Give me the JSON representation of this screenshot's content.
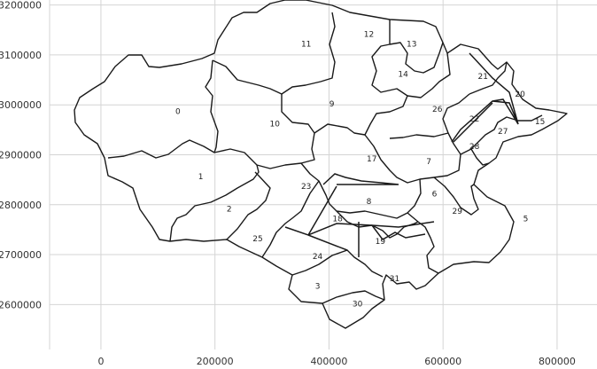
{
  "chart_data": {
    "type": "map",
    "title": "",
    "xlabel": "",
    "ylabel": "",
    "grid": true,
    "xlim": [
      -90000,
      870000
    ],
    "ylim": [
      2510000,
      3210000
    ],
    "x_ticks": [
      0,
      200000,
      400000,
      600000,
      800000
    ],
    "y_ticks": [
      2600000,
      2700000,
      2800000,
      2900000,
      3000000,
      3100000,
      3200000
    ],
    "x_tick_labels": [
      "0",
      "200000",
      "400000",
      "600000",
      "800000"
    ],
    "y_tick_labels": [
      "2600000",
      "2700000",
      "2800000",
      "2900000",
      "3000000",
      "3100000",
      "3200000"
    ],
    "colors": {
      "outline": "#1a1a1a",
      "grid": "#d4d4d4",
      "background": "#ffffff"
    },
    "regions": [
      {
        "id": "0",
        "label": "0",
        "x": 135000,
        "y": 2985000
      },
      {
        "id": "1",
        "label": "1",
        "x": 175000,
        "y": 2855000
      },
      {
        "id": "2",
        "label": "2",
        "x": 225000,
        "y": 2790000
      },
      {
        "id": "3",
        "label": "3",
        "x": 380000,
        "y": 2635000
      },
      {
        "id": "5",
        "label": "5",
        "x": 745000,
        "y": 2770000
      },
      {
        "id": "6",
        "label": "6",
        "x": 585000,
        "y": 2820000
      },
      {
        "id": "7",
        "label": "7",
        "x": 575000,
        "y": 2885000
      },
      {
        "id": "8",
        "label": "8",
        "x": 470000,
        "y": 2805000
      },
      {
        "id": "9",
        "label": "9",
        "x": 405000,
        "y": 3000000
      },
      {
        "id": "10",
        "label": "10",
        "x": 305000,
        "y": 2960000
      },
      {
        "id": "11",
        "label": "11",
        "x": 360000,
        "y": 3120000
      },
      {
        "id": "12",
        "label": "12",
        "x": 470000,
        "y": 3140000
      },
      {
        "id": "13",
        "label": "13",
        "x": 545000,
        "y": 3120000
      },
      {
        "id": "14",
        "label": "14",
        "x": 530000,
        "y": 3060000
      },
      {
        "id": "15",
        "label": "15",
        "x": 770000,
        "y": 2965000
      },
      {
        "id": "17",
        "label": "17",
        "x": 475000,
        "y": 2890000
      },
      {
        "id": "18",
        "label": "18",
        "x": 415000,
        "y": 2770000
      },
      {
        "id": "19",
        "label": "19",
        "x": 490000,
        "y": 2725000
      },
      {
        "id": "20",
        "label": "20",
        "x": 735000,
        "y": 3020000
      },
      {
        "id": "21",
        "label": "21",
        "x": 670000,
        "y": 3055000
      },
      {
        "id": "22",
        "label": "22",
        "x": 655000,
        "y": 2970000
      },
      {
        "id": "23",
        "label": "23",
        "x": 360000,
        "y": 2835000
      },
      {
        "id": "24",
        "label": "24",
        "x": 380000,
        "y": 2695000
      },
      {
        "id": "25",
        "label": "25",
        "x": 275000,
        "y": 2730000
      },
      {
        "id": "26",
        "label": "26",
        "x": 590000,
        "y": 2990000
      },
      {
        "id": "27",
        "label": "27",
        "x": 705000,
        "y": 2945000
      },
      {
        "id": "28",
        "label": "28",
        "x": 655000,
        "y": 2915000
      },
      {
        "id": "29",
        "label": "29",
        "x": 625000,
        "y": 2785000
      },
      {
        "id": "30",
        "label": "30",
        "x": 450000,
        "y": 2600000
      },
      {
        "id": "31",
        "label": "31",
        "x": 515000,
        "y": 2650000
      }
    ]
  }
}
